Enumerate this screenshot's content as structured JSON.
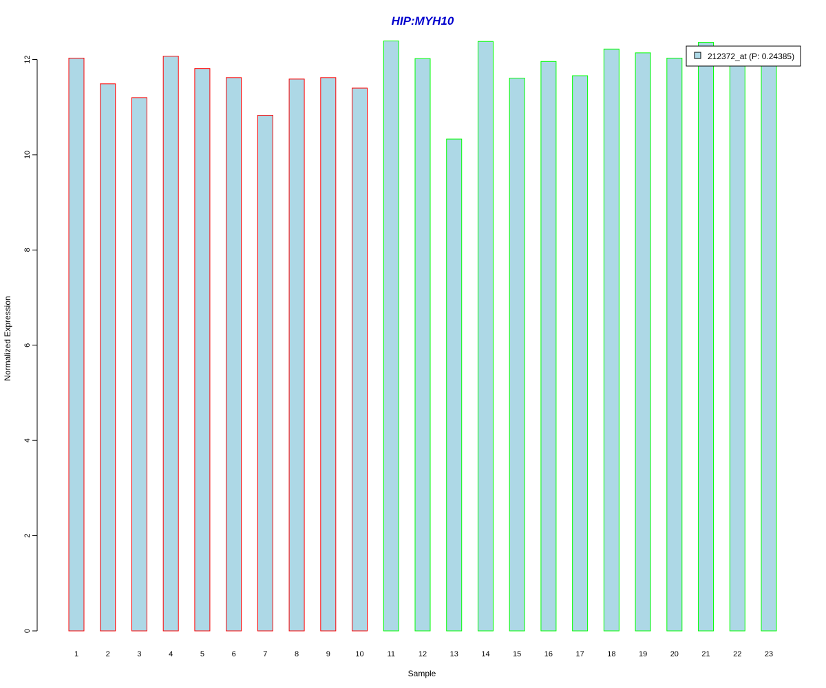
{
  "chart_data": {
    "type": "bar",
    "title": "HIP:MYH10",
    "xlabel": "Sample",
    "ylabel": "Normalized Expression",
    "categories": [
      "1",
      "2",
      "3",
      "4",
      "5",
      "6",
      "7",
      "8",
      "9",
      "10",
      "11",
      "12",
      "13",
      "14",
      "15",
      "16",
      "17",
      "18",
      "19",
      "20",
      "21",
      "22",
      "23"
    ],
    "values": [
      12.03,
      11.49,
      11.2,
      12.07,
      11.81,
      11.62,
      10.83,
      11.59,
      11.62,
      11.4,
      12.39,
      12.02,
      10.33,
      12.38,
      11.61,
      11.96,
      11.66,
      12.22,
      12.14,
      12.03,
      12.36,
      12.0,
      12.0
    ],
    "group_border_colors": [
      "#ff0000",
      "#ff0000",
      "#ff0000",
      "#ff0000",
      "#ff0000",
      "#ff0000",
      "#ff0000",
      "#ff0000",
      "#ff0000",
      "#ff0000",
      "#00ff00",
      "#00ff00",
      "#00ff00",
      "#00ff00",
      "#00ff00",
      "#00ff00",
      "#00ff00",
      "#00ff00",
      "#00ff00",
      "#00ff00",
      "#00ff00",
      "#00ff00",
      "#00ff00"
    ],
    "ylim": [
      0,
      12.5
    ],
    "yticks": [
      0,
      2,
      4,
      6,
      8,
      10,
      12
    ],
    "grid": false,
    "legend": {
      "placement": "top-right",
      "entries": [
        {
          "label": "212372_at (P: 0.24385)",
          "color": "#add8e6"
        }
      ]
    },
    "bar_fill": "#add8e6",
    "title_color": "#0000cd"
  }
}
